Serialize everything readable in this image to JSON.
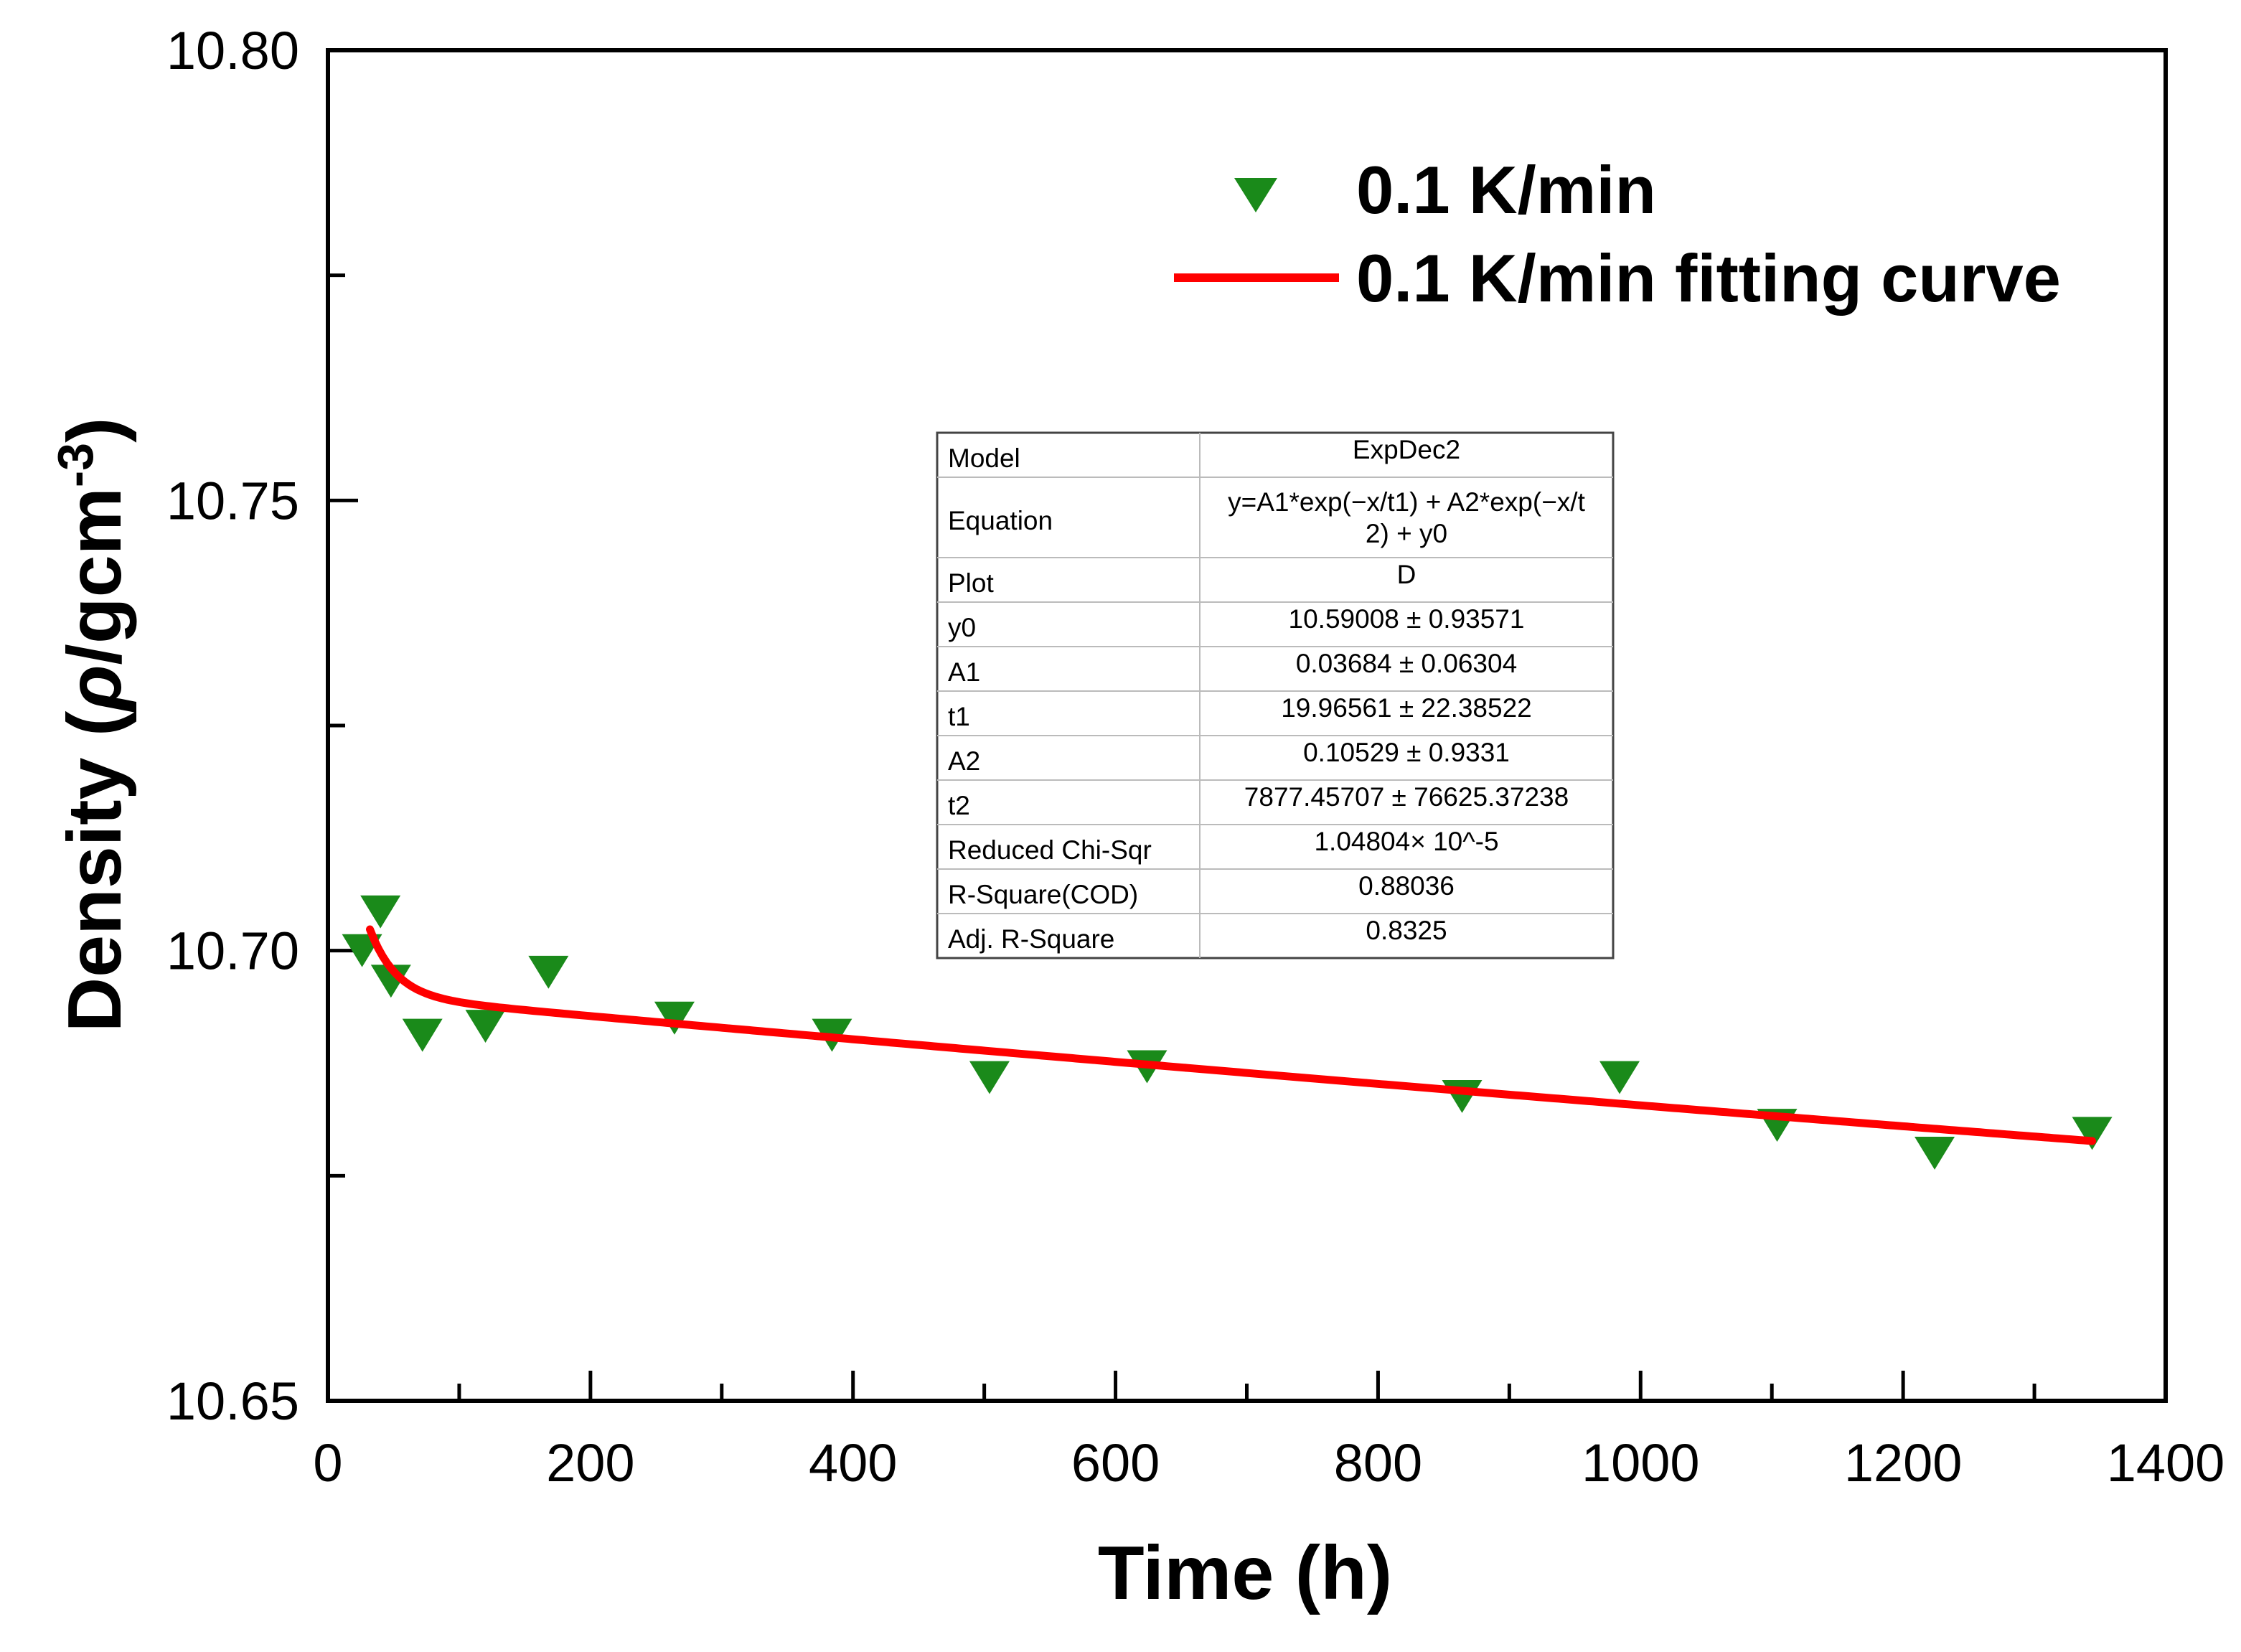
{
  "chart_data": {
    "type": "scatter",
    "title": "",
    "xlabel": "Time (h)",
    "ylabel": {
      "prefix": "Density (",
      "symbol": "ρ",
      "unit": "/gcm",
      "exponent": "-3",
      "suffix": ")"
    },
    "xlim": [
      0,
      1400
    ],
    "ylim": [
      10.65,
      10.8
    ],
    "x_ticks": [
      "0",
      "200",
      "400",
      "600",
      "800",
      "1000",
      "1200",
      "1400"
    ],
    "y_ticks": [
      "10.65",
      "10.70",
      "10.75",
      "10.80"
    ],
    "series": [
      {
        "name": "0.1 K/min",
        "marker": "triangle-down",
        "color": "#1a8a1a",
        "points": [
          [
            26,
            10.7
          ],
          [
            40,
            10.7043
          ],
          [
            48,
            10.6966
          ],
          [
            72,
            10.6906
          ],
          [
            120,
            10.6916
          ],
          [
            168,
            10.6976
          ],
          [
            264,
            10.6925
          ],
          [
            384,
            10.6906
          ],
          [
            504,
            10.6859
          ],
          [
            624,
            10.6871
          ],
          [
            864,
            10.6838
          ],
          [
            984,
            10.6859
          ],
          [
            1104,
            10.6806
          ],
          [
            1224,
            10.6775
          ],
          [
            1344,
            10.6797
          ]
        ]
      },
      {
        "name": "0.1 K/min fitting curve",
        "type": "line",
        "color": "#ff0000",
        "model": {
          "y0": 10.59008,
          "A1": 0.03684,
          "t1": 19.96561,
          "A2": 0.10529,
          "t2": 7877.45707
        },
        "x_range": [
          32,
          1344
        ]
      }
    ],
    "legend_position": "top-right",
    "fit_table": [
      {
        "label": "Model",
        "value": [
          "ExpDec2"
        ]
      },
      {
        "label": "Equation",
        "value": [
          "y=A1*exp(−x/t1) + A2*exp(−x/t",
          "2) + y0"
        ]
      },
      {
        "label": "Plot",
        "value": [
          "D"
        ]
      },
      {
        "label": "y0",
        "value": [
          "10.59008 ± 0.93571"
        ]
      },
      {
        "label": "A1",
        "value": [
          "0.03684 ± 0.06304"
        ]
      },
      {
        "label": "t1",
        "value": [
          "19.96561 ± 22.38522"
        ]
      },
      {
        "label": "A2",
        "value": [
          "0.10529 ± 0.9331"
        ]
      },
      {
        "label": "t2",
        "value": [
          "7877.45707 ± 76625.37238"
        ]
      },
      {
        "label": "Reduced Chi-Sqr",
        "value": [
          "1.04804× 10^-5"
        ]
      },
      {
        "label": "R-Square(COD)",
        "value": [
          "0.88036"
        ]
      },
      {
        "label": "Adj. R-Square",
        "value": [
          "0.8325"
        ]
      }
    ]
  }
}
